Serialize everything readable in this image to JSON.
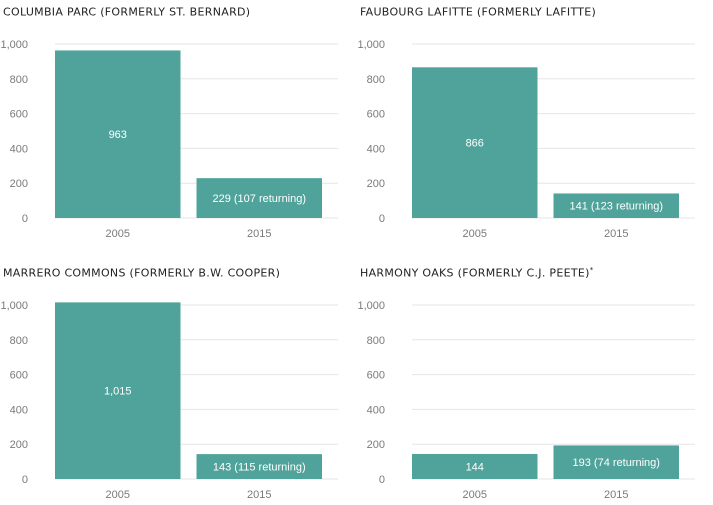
{
  "colors": {
    "bar": "#4fa39a",
    "grid": "#e6e6e6",
    "tick_text": "#7a7a7a",
    "label_text": "#ffffff"
  },
  "chart_data": [
    {
      "type": "bar",
      "title": "COLUMBIA PARC (FORMERLY ST. BERNARD)",
      "footnote_mark": "",
      "categories": [
        "2005",
        "2015"
      ],
      "values": [
        963,
        229
      ],
      "bar_labels": [
        "963",
        "229 (107 returning)"
      ],
      "ylim": [
        0,
        1000
      ],
      "yticks": [
        "0",
        "200",
        "400",
        "600",
        "800",
        "1,000"
      ],
      "grid": true
    },
    {
      "type": "bar",
      "title": "FAUBOURG LAFITTE (FORMERLY LAFITTE)",
      "footnote_mark": "",
      "categories": [
        "2005",
        "2015"
      ],
      "values": [
        866,
        141
      ],
      "bar_labels": [
        "866",
        "141 (123 returning)"
      ],
      "ylim": [
        0,
        1000
      ],
      "yticks": [
        "0",
        "200",
        "400",
        "600",
        "800",
        "1,000"
      ],
      "grid": true
    },
    {
      "type": "bar",
      "title": "MARRERO COMMONS (FORMERLY B.W. COOPER)",
      "footnote_mark": "",
      "categories": [
        "2005",
        "2015"
      ],
      "values": [
        1015,
        143
      ],
      "bar_labels": [
        "1,015",
        "143 (115 returning)"
      ],
      "ylim": [
        0,
        1000
      ],
      "yticks": [
        "0",
        "200",
        "400",
        "600",
        "800",
        "1,000"
      ],
      "grid": true
    },
    {
      "type": "bar",
      "title": "HARMONY OAKS (FORMERLY C.J. PEETE)",
      "footnote_mark": "*",
      "categories": [
        "2005",
        "2015"
      ],
      "values": [
        144,
        193
      ],
      "bar_labels": [
        "144",
        "193 (74 returning)"
      ],
      "ylim": [
        0,
        1000
      ],
      "yticks": [
        "0",
        "200",
        "400",
        "600",
        "800",
        "1,000"
      ],
      "grid": true
    }
  ]
}
